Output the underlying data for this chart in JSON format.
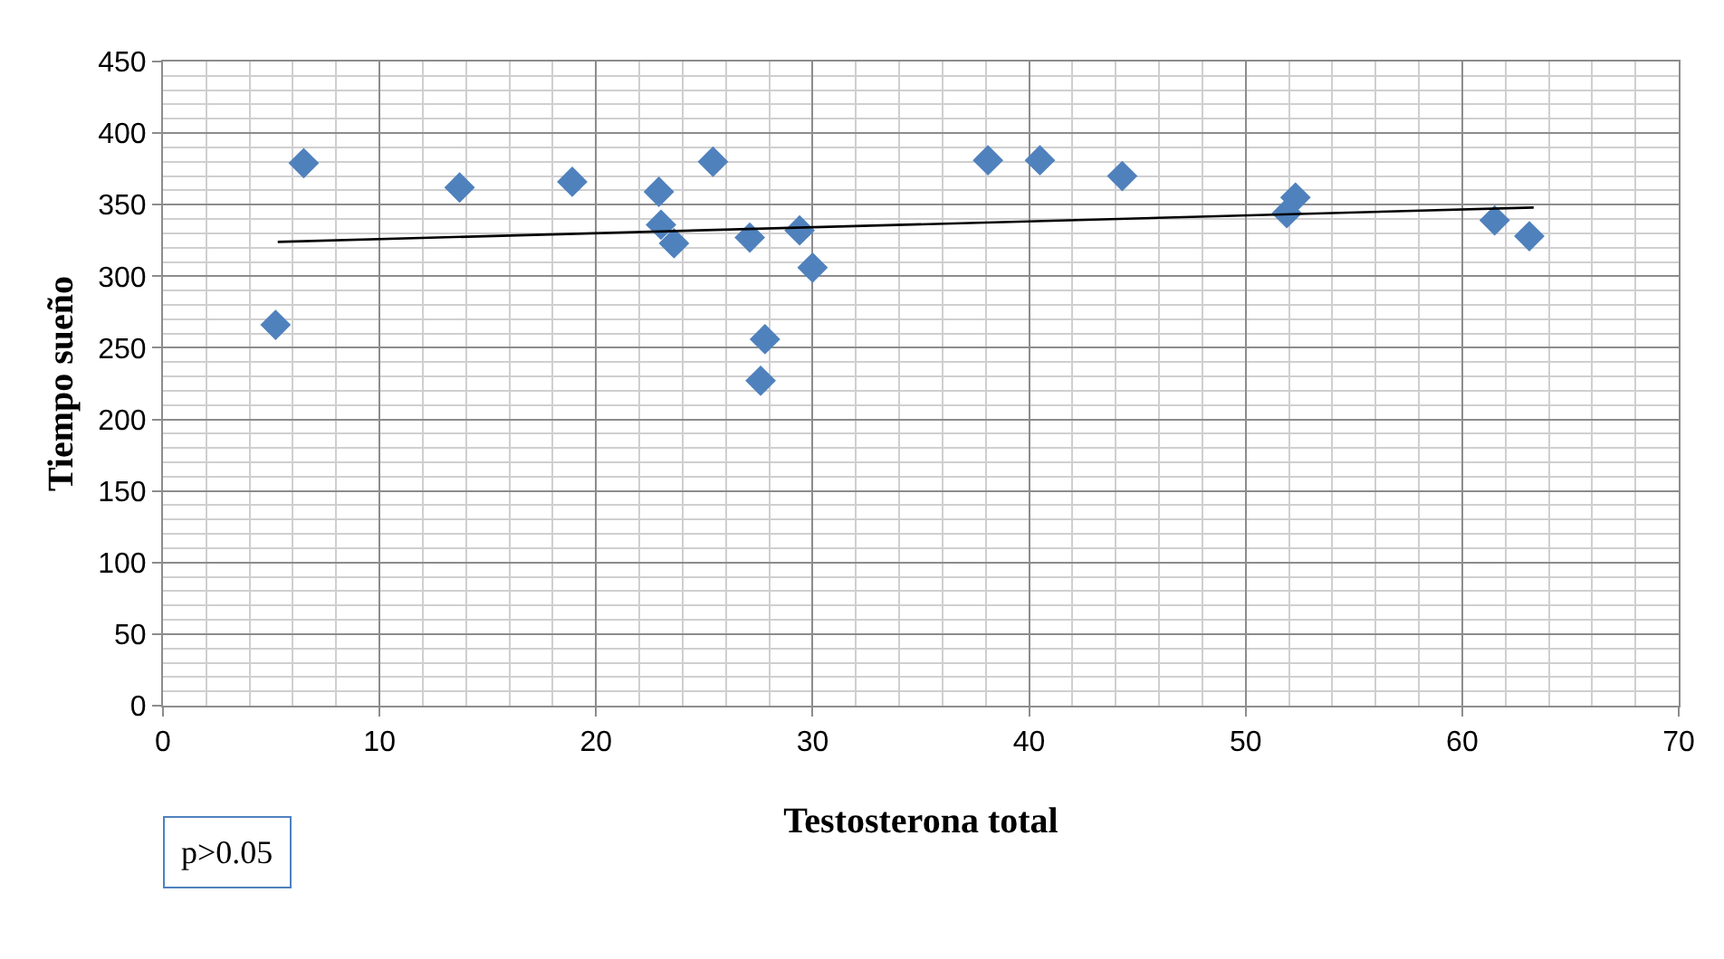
{
  "chart_data": {
    "type": "scatter",
    "xlabel": "Testosterona total",
    "ylabel": "Tiempo sueño",
    "marker": "diamond",
    "grid": true,
    "xlim": [
      0,
      70
    ],
    "xticks": [
      0,
      10,
      20,
      30,
      40,
      50,
      60,
      70
    ],
    "ylim": [
      0,
      450
    ],
    "yticks": [
      0,
      50,
      100,
      150,
      200,
      250,
      300,
      350,
      400,
      450
    ],
    "series": [
      {
        "color": "#4f81bd",
        "x": [
          5.2,
          6.5,
          13.7,
          18.9,
          22.9,
          23,
          23.6,
          25.4,
          27.1,
          27.8,
          27.6,
          29.4,
          30,
          38.1,
          40.5,
          44.3,
          51.9,
          52.3,
          61.5,
          63.1
        ],
        "values": [
          266,
          379,
          362,
          366,
          359,
          336,
          323,
          380,
          327,
          256,
          227,
          332,
          306,
          381,
          381,
          370,
          344,
          355,
          339,
          328
        ]
      },
      {
        "type": "line",
        "color": "#000000",
        "marker": "none",
        "x": [
          5.3,
          63.3
        ],
        "values": [
          324,
          348
        ]
      }
    ],
    "annotations": [
      "p>0.05"
    ]
  }
}
